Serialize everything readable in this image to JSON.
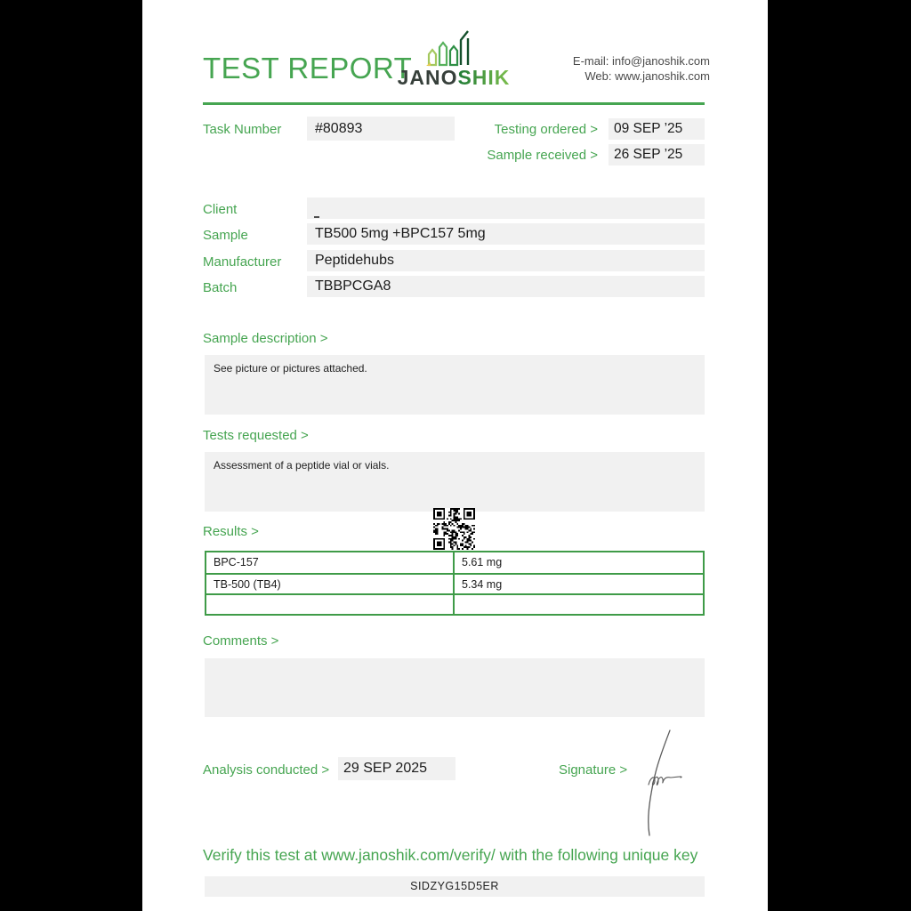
{
  "colors": {
    "accent": "#46a551",
    "table_border": "#3f9b48",
    "box_gray": "#f1f1f1",
    "logo_green_start": "#1e7a35",
    "logo_green_end": "#7dbf4e"
  },
  "header": {
    "title": "TEST REPORT",
    "logo": {
      "text_dark": "JANO",
      "text_green": "SHIK",
      "icon": "bar-chart-logo-icon"
    },
    "contact": {
      "email_line": "E-mail: info@janoshik.com",
      "web_line": "Web: www.janoshik.com"
    }
  },
  "task": {
    "label": "Task Number",
    "value": "#80893"
  },
  "dates": [
    {
      "label": "Testing ordered  >",
      "value": "09 SEP ’25"
    },
    {
      "label": "Sample received >",
      "value": "26 SEP ’25"
    }
  ],
  "info_rows": [
    {
      "label": "Client",
      "value": ""
    },
    {
      "label": "Sample",
      "value": "TB500 5mg +BPC157 5mg"
    },
    {
      "label": "Manufacturer",
      "value": "Peptidehubs"
    },
    {
      "label": "Batch",
      "value": "TBBPCGA8"
    }
  ],
  "sections": {
    "sample_description": {
      "heading": "Sample description >",
      "body": "See picture or pictures attached."
    },
    "tests_requested": {
      "heading": "Tests requested >",
      "body": "Assessment of a peptide vial or vials."
    },
    "results": {
      "heading": "Results >",
      "rows": [
        {
          "name": "BPC-157",
          "value": "5.61 mg"
        },
        {
          "name": "TB-500 (TB4)",
          "value": "5.34 mg"
        },
        {
          "name": "",
          "value": ""
        }
      ]
    },
    "comments": {
      "heading": "Comments >",
      "body": ""
    }
  },
  "footer": {
    "analysis": {
      "label": "Analysis conducted >",
      "value": "29 SEP 2025"
    },
    "signature_label": "Signature >",
    "verify_text": "Verify this test at www.janoshik.com/verify/ with the following unique key",
    "unique_key": "SIDZYG15D5ER"
  }
}
